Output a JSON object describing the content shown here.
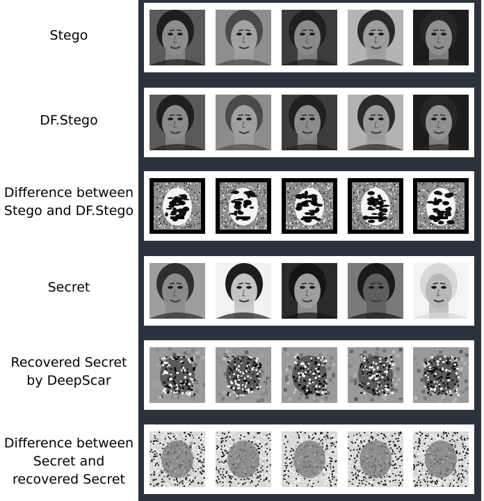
{
  "rows": [
    {
      "label_lines": [
        "Stego"
      ],
      "kind": "face-gray",
      "tiles": [
        {
          "skin": "#8c8c8c",
          "hair": "#1e1e1e",
          "bg": "#5a5a5a"
        },
        {
          "skin": "#a2a2a2",
          "hair": "#4a4a4a",
          "bg": "#8e8e8e"
        },
        {
          "skin": "#8a8a8a",
          "hair": "#202020",
          "bg": "#3c3c3c"
        },
        {
          "skin": "#9c9c9c",
          "hair": "#2a2a2a",
          "bg": "#b4b4b4"
        },
        {
          "skin": "#8e8e8e",
          "hair": "#262626",
          "bg": "#1c1c1c"
        }
      ]
    },
    {
      "label_lines": [
        "DF.Stego"
      ],
      "kind": "face-gray",
      "tiles": [
        {
          "skin": "#8a8a8a",
          "hair": "#1e1e1e",
          "bg": "#5a5a5a"
        },
        {
          "skin": "#a0a0a0",
          "hair": "#4a4a4a",
          "bg": "#8c8c8c"
        },
        {
          "skin": "#8c8c8c",
          "hair": "#202020",
          "bg": "#3c3c3c"
        },
        {
          "skin": "#9a9a9a",
          "hair": "#2a2a2a",
          "bg": "#b2b2b2"
        },
        {
          "skin": "#909090",
          "hair": "#262626",
          "bg": "#1c1c1c"
        }
      ]
    },
    {
      "label_lines": [
        "Difference between",
        "Stego and DF.Stego"
      ],
      "kind": "difference",
      "tiles": [
        {},
        {},
        {},
        {},
        {}
      ]
    },
    {
      "label_lines": [
        "Secret"
      ],
      "kind": "face-gray",
      "tiles": [
        {
          "skin": "#8a8a8a",
          "hair": "#2e2e2e",
          "bg": "#9e9e9e"
        },
        {
          "skin": "#c4c4c4",
          "hair": "#1c1c1c",
          "bg": "#f2f2f2"
        },
        {
          "skin": "#9e9e9e",
          "hair": "#141414",
          "bg": "#2a2a2a"
        },
        {
          "skin": "#5e5e5e",
          "hair": "#1a1a1a",
          "bg": "#7a7a7a"
        },
        {
          "skin": "#b8b8b8",
          "hair": "#d8d8d8",
          "bg": "#f4f4f4"
        }
      ]
    },
    {
      "label_lines": [
        "Recovered Secret",
        "by DeepScar"
      ],
      "kind": "noisy",
      "tiles": [
        {},
        {},
        {},
        {},
        {}
      ]
    },
    {
      "label_lines": [
        "Difference between",
        "Secret and",
        "recovered Secret"
      ],
      "kind": "speckle",
      "tiles": [
        {},
        {},
        {},
        {},
        {}
      ]
    }
  ]
}
